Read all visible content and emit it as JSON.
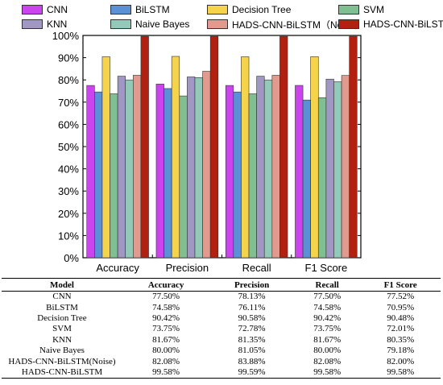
{
  "chart_data": {
    "type": "bar",
    "categories": [
      "Accuracy",
      "Precision",
      "Recall",
      "F1 Score"
    ],
    "series": [
      {
        "name": "CNN",
        "color": "#cc44ee",
        "values": [
          77.5,
          78.13,
          77.5,
          77.52
        ]
      },
      {
        "name": "BiLSTM",
        "color": "#5b8fd6",
        "values": [
          74.58,
          76.11,
          74.58,
          70.95
        ]
      },
      {
        "name": "Decision Tree",
        "color": "#f5d34a",
        "values": [
          90.42,
          90.58,
          90.42,
          90.48
        ]
      },
      {
        "name": "SVM",
        "color": "#7fbf92",
        "values": [
          73.75,
          72.78,
          73.75,
          72.01
        ]
      },
      {
        "name": "KNN",
        "color": "#a197c4",
        "values": [
          81.67,
          81.35,
          81.67,
          80.35
        ]
      },
      {
        "name": "Naive Bayes",
        "color": "#93c9b8",
        "values": [
          80.0,
          81.05,
          80.0,
          79.18
        ]
      },
      {
        "name": "HADS-CNN-BiLSTM（Noise）",
        "color": "#e29a8e",
        "values": [
          82.08,
          83.88,
          82.08,
          82.0
        ]
      },
      {
        "name": "HADS-CNN-BiLSTM",
        "color": "#b2200f",
        "values": [
          99.58,
          99.59,
          99.58,
          99.58
        ]
      }
    ],
    "ylim": [
      0,
      100
    ],
    "yticks": [
      "0%",
      "10%",
      "20%",
      "30%",
      "40%",
      "50%",
      "60%",
      "70%",
      "80%",
      "90%",
      "100%"
    ],
    "legend_position": "top",
    "grid": false
  },
  "table": {
    "headers": [
      "Model",
      "Accuracy",
      "Precision",
      "Recall",
      "F1 Score"
    ],
    "rows": [
      [
        "CNN",
        "77.50%",
        "78.13%",
        "77.50%",
        "77.52%"
      ],
      [
        "BiLSTM",
        "74.58%",
        "76.11%",
        "74.58%",
        "70.95%"
      ],
      [
        "Decision Tree",
        "90.42%",
        "90.58%",
        "90.42%",
        "90.48%"
      ],
      [
        "SVM",
        "73.75%",
        "72.78%",
        "73.75%",
        "72.01%"
      ],
      [
        "KNN",
        "81.67%",
        "81.35%",
        "81.67%",
        "80.35%"
      ],
      [
        "Naive Bayes",
        "80.00%",
        "81.05%",
        "80.00%",
        "79.18%"
      ],
      [
        "HADS-CNN-BiLSTM(Noise)",
        "82.08%",
        "83.88%",
        "82.08%",
        "82.00%"
      ],
      [
        "HADS-CNN-BiLSTM",
        "99.58%",
        "99.59%",
        "99.58%",
        "99.58%"
      ]
    ]
  }
}
